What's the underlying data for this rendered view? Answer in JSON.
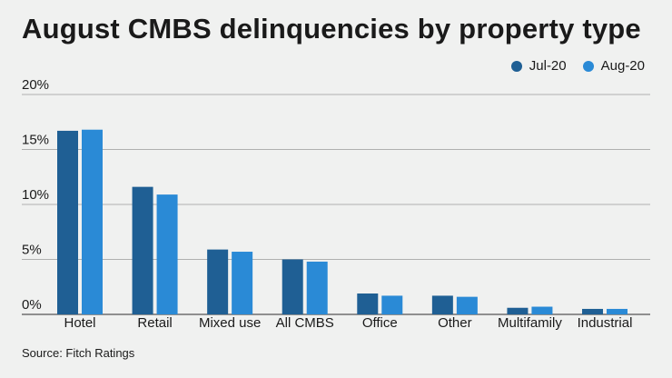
{
  "chart_data": {
    "type": "bar",
    "title": "August CMBS delinquencies by property type",
    "categories": [
      "Hotel",
      "Retail",
      "Mixed use",
      "All CMBS",
      "Office",
      "Other",
      "Multifamily",
      "Industrial"
    ],
    "series": [
      {
        "name": "Jul-20",
        "color": "#1f5f94",
        "values": [
          16.7,
          11.6,
          5.9,
          5.0,
          1.9,
          1.7,
          0.6,
          0.5
        ]
      },
      {
        "name": "Aug-20",
        "color": "#2a8ad6",
        "values": [
          16.8,
          10.9,
          5.7,
          4.8,
          1.7,
          1.6,
          0.7,
          0.5
        ]
      }
    ],
    "yticks": [
      "0%",
      "5%",
      "10%",
      "15%",
      "20%"
    ],
    "ylim": [
      0,
      20
    ],
    "grid": true,
    "legend": "top-right"
  },
  "source": "Source: Fitch Ratings"
}
